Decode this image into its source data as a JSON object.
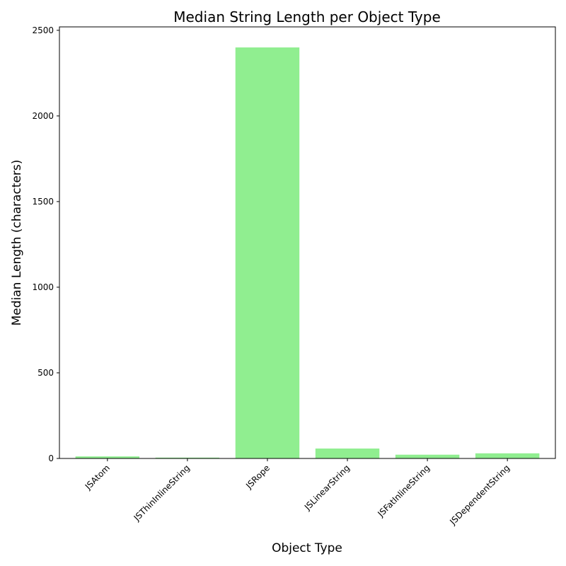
{
  "chart_data": {
    "type": "bar",
    "title": "Median String Length per Object Type",
    "xlabel": "Object Type",
    "ylabel": "Median Length (characters)",
    "categories": [
      "JSAtom",
      "JSThinInlineString",
      "JSRope",
      "JSLinearString",
      "JSFatInlineString",
      "JSDependentString"
    ],
    "values": [
      12,
      5,
      2400,
      58,
      22,
      30
    ],
    "ylim": [
      0,
      2520
    ],
    "yticks": [
      0,
      500,
      1000,
      1500,
      2000,
      2500
    ],
    "bar_color": "#90ee90",
    "grid": false,
    "legend": "none"
  }
}
